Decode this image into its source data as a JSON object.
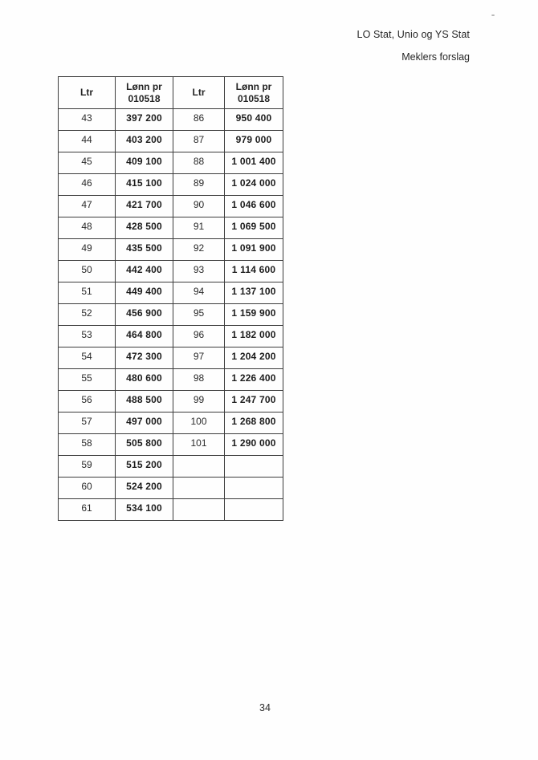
{
  "header": {
    "line1": "LO Stat, Unio og YS Stat",
    "line2": "Meklers forslag"
  },
  "table": {
    "col_headers": {
      "ltr": "Ltr",
      "salary_line1": "Lønn pr",
      "salary_line2": "010518"
    },
    "rows": [
      [
        "43",
        "397 200",
        "86",
        "950 400"
      ],
      [
        "44",
        "403 200",
        "87",
        "979 000"
      ],
      [
        "45",
        "409 100",
        "88",
        "1 001 400"
      ],
      [
        "46",
        "415 100",
        "89",
        "1 024 000"
      ],
      [
        "47",
        "421 700",
        "90",
        "1 046 600"
      ],
      [
        "48",
        "428 500",
        "91",
        "1 069 500"
      ],
      [
        "49",
        "435 500",
        "92",
        "1 091 900"
      ],
      [
        "50",
        "442 400",
        "93",
        "1 114 600"
      ],
      [
        "51",
        "449 400",
        "94",
        "1 137 100"
      ],
      [
        "52",
        "456 900",
        "95",
        "1 159 900"
      ],
      [
        "53",
        "464 800",
        "96",
        "1 182 000"
      ],
      [
        "54",
        "472 300",
        "97",
        "1 204 200"
      ],
      [
        "55",
        "480 600",
        "98",
        "1 226 400"
      ],
      [
        "56",
        "488 500",
        "99",
        "1 247 700"
      ],
      [
        "57",
        "497 000",
        "100",
        "1 268 800"
      ],
      [
        "58",
        "505 800",
        "101",
        "1 290 000"
      ],
      [
        "59",
        "515 200",
        "",
        ""
      ],
      [
        "60",
        "524 200",
        "",
        ""
      ],
      [
        "61",
        "534 100",
        "",
        ""
      ]
    ]
  },
  "footer": {
    "page_number": "34"
  },
  "colors": {
    "text": "#1e1e1e",
    "border": "#3c3c3c",
    "background": "#fefefe"
  }
}
